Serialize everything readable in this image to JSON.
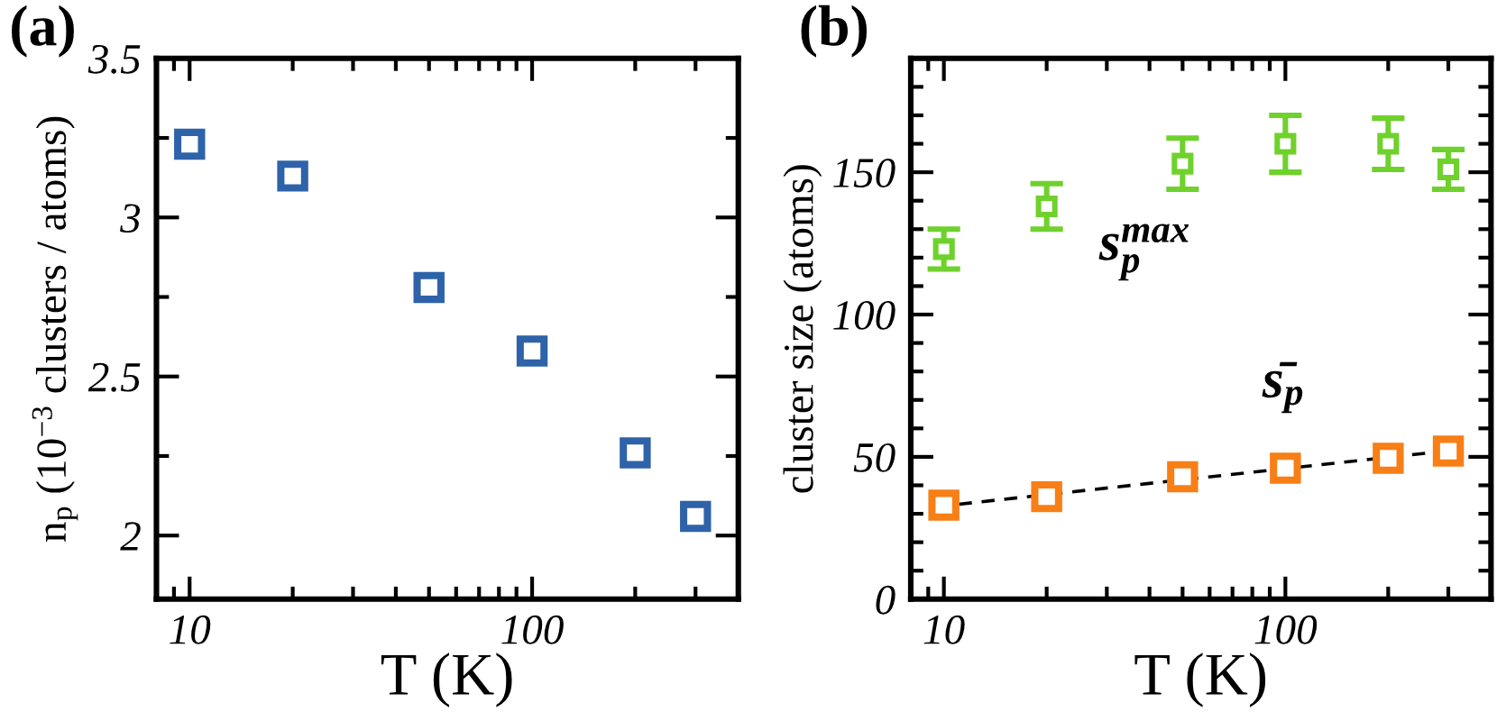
{
  "chart_data": [
    {
      "type": "scatter",
      "title": "(a)",
      "xlabel": "T (K)",
      "ylabel": "n$_{p}$ (10$^{−3}$ clusters / atoms)",
      "x": [
        10,
        20,
        50,
        100,
        200,
        300
      ],
      "series": [
        {
          "color": "#2e63a9",
          "values": [
            3.23,
            3.13,
            2.78,
            2.58,
            2.26,
            2.06
          ]
        }
      ],
      "marker": "square",
      "log": "x",
      "xlim": [
        8,
        400
      ],
      "xticks": [
        {
          "value": 9,
          "label": null
        },
        10,
        {
          "value": 20,
          "label": null
        },
        {
          "value": 30,
          "label": null
        },
        {
          "value": 40,
          "label": null
        },
        {
          "value": 50,
          "label": null
        },
        {
          "value": 60,
          "label": null
        },
        {
          "value": 70,
          "label": null
        },
        {
          "value": 80,
          "label": null
        },
        {
          "value": 90,
          "label": null
        },
        100,
        {
          "value": 200,
          "label": null
        },
        {
          "value": 300,
          "label": null
        }
      ],
      "ylim": [
        1.8,
        3.5
      ],
      "yticks": [
        2,
        {
          "value": 2.25,
          "label": null
        },
        2.5,
        {
          "value": 2.75,
          "label": null
        },
        3,
        {
          "value": 3.25,
          "label": null
        },
        3.5
      ]
    },
    {
      "type": "scatter",
      "title": "(b)",
      "xlabel": "T (K)",
      "ylabel": "cluster size (atoms)",
      "x": [
        10,
        20,
        50,
        100,
        200,
        300
      ],
      "series": [
        {
          "name": "s$^{max}$$_{p}$",
          "color": "#6fd12c",
          "values": [
            123,
            138,
            153,
            160,
            160,
            151
          ],
          "errors": [
            7,
            8,
            9,
            10,
            9,
            7
          ]
        },
        {
          "name": "s̄$_{p}$",
          "color": "#f77f16",
          "values": [
            33,
            36,
            43,
            46,
            49.5,
            52
          ]
        },
        {
          "type": "line",
          "x": [
            9.5,
            320
          ],
          "values": [
            32.5,
            52.5
          ],
          "color": "#000000",
          "line_style": "dashed",
          "marker": "none"
        }
      ],
      "marker": "square",
      "log": "x",
      "xlim": [
        8,
        400
      ],
      "xticks": [
        {
          "value": 9,
          "label": null
        },
        10,
        {
          "value": 20,
          "label": null
        },
        {
          "value": 30,
          "label": null
        },
        {
          "value": 40,
          "label": null
        },
        {
          "value": 50,
          "label": null
        },
        {
          "value": 60,
          "label": null
        },
        {
          "value": 70,
          "label": null
        },
        {
          "value": 80,
          "label": null
        },
        {
          "value": 90,
          "label": null
        },
        100,
        {
          "value": 200,
          "label": null
        },
        {
          "value": 300,
          "label": null
        }
      ],
      "ylim": [
        0,
        190
      ],
      "yticks": [
        0,
        {
          "value": 10,
          "label": null
        },
        {
          "value": 20,
          "label": null
        },
        {
          "value": 30,
          "label": null
        },
        {
          "value": 40,
          "label": null
        },
        50,
        {
          "value": 60,
          "label": null
        },
        {
          "value": 70,
          "label": null
        },
        {
          "value": 80,
          "label": null
        },
        {
          "value": 90,
          "label": null
        },
        100,
        {
          "value": 110,
          "label": null
        },
        {
          "value": 120,
          "label": null
        },
        {
          "value": 130,
          "label": null
        },
        {
          "value": 140,
          "label": null
        },
        150,
        {
          "value": 160,
          "label": null
        },
        {
          "value": 170,
          "label": null
        },
        {
          "value": 180,
          "label": null
        }
      ]
    }
  ]
}
